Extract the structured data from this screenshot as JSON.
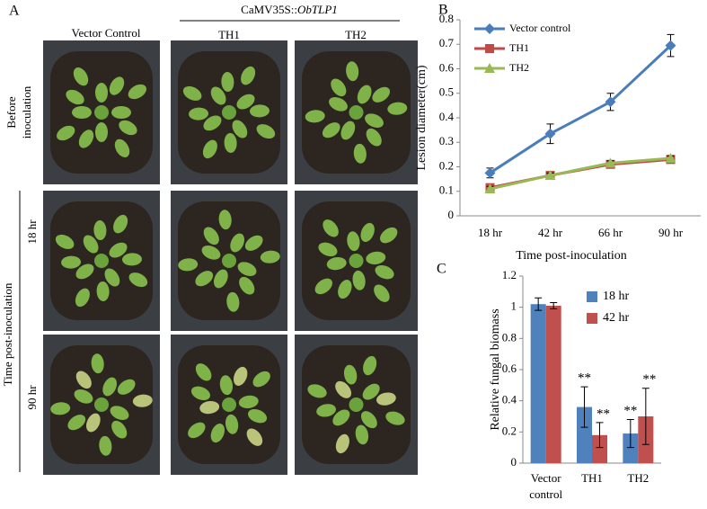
{
  "panel_a": {
    "label": "A",
    "construct": "CaMV35S::",
    "gene": "ObTLP1",
    "columns": [
      "Vector Control",
      "TH1",
      "TH2"
    ],
    "before": [
      "Before",
      "inoculation"
    ],
    "time_label": "Time post-inoculation",
    "rows": [
      "18 hr",
      "90 hr"
    ]
  },
  "chart_data": [
    {
      "type": "line",
      "panel": "B",
      "y_label": "Lesion diameter(cm)",
      "x_label": "Time post-inoculation",
      "categories": [
        "18 hr",
        "42 hr",
        "66 hr",
        "90 hr"
      ],
      "series": [
        {
          "name": "Vector control",
          "color": "#4a7ebb",
          "marker": "diamond",
          "values": [
            0.175,
            0.335,
            0.465,
            0.695
          ],
          "errors": [
            0.02,
            0.04,
            0.035,
            0.045
          ]
        },
        {
          "name": "TH1",
          "color": "#be4b48",
          "marker": "square",
          "values": [
            0.115,
            0.165,
            0.21,
            0.23
          ],
          "errors": [
            0.01,
            0.01,
            0.01,
            0.01
          ]
        },
        {
          "name": "TH2",
          "color": "#98b954",
          "marker": "triangle",
          "values": [
            0.11,
            0.165,
            0.215,
            0.235
          ],
          "errors": [
            0.01,
            0.01,
            0.01,
            0.01
          ]
        }
      ],
      "ylim": [
        0,
        0.8
      ],
      "yticks": [
        0,
        0.1,
        0.2,
        0.3,
        0.4,
        0.5,
        0.6,
        0.7,
        0.8
      ],
      "legend": "top-left"
    },
    {
      "type": "bar",
      "panel": "C",
      "y_label": "Relative fungal biomass",
      "categories": [
        "Vector control",
        "TH1",
        "TH2"
      ],
      "series": [
        {
          "name": "18 hr",
          "color": "#4f81bd",
          "values": [
            1.02,
            0.36,
            0.19
          ],
          "errors": [
            0.04,
            0.13,
            0.09
          ],
          "significance": [
            null,
            "**",
            "**"
          ]
        },
        {
          "name": "42 hr",
          "color": "#c0504d",
          "values": [
            1.01,
            0.18,
            0.3
          ],
          "errors": [
            0.02,
            0.08,
            0.18
          ],
          "significance": [
            null,
            "**",
            "**"
          ]
        }
      ],
      "ylim": [
        0,
        1.2
      ],
      "yticks": [
        0,
        0.2,
        0.4,
        0.6,
        0.8,
        1,
        1.2
      ],
      "legend": "top-right"
    }
  ]
}
